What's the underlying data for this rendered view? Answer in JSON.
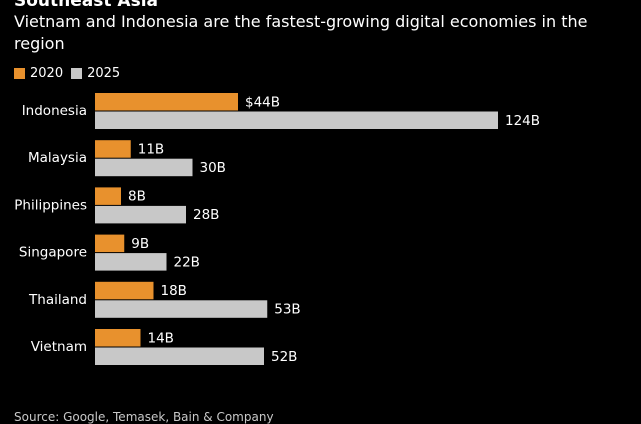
{
  "title": "Southeast Asia",
  "subtitle": "Vietnam and Indonesia are the fastest-growing digital economies in the region",
  "source": "Source: Google, Temasek, Bain & Company",
  "colors": {
    "series_2020": "#e8912d",
    "series_2025": "#c8c8c8",
    "background": "#000000",
    "text": "#ffffff"
  },
  "chart_data": {
    "type": "bar",
    "orientation": "horizontal",
    "title": "Southeast Asia",
    "subtitle": "Vietnam and Indonesia are the fastest-growing digital economies in the region",
    "categories": [
      "Indonesia",
      "Malaysia",
      "Philippines",
      "Singapore",
      "Thailand",
      "Vietnam"
    ],
    "series": [
      {
        "name": "2020",
        "values": [
          44,
          11,
          8,
          9,
          18,
          14
        ],
        "labels": [
          "$44B",
          "11B",
          "8B",
          "9B",
          "18B",
          "14B"
        ]
      },
      {
        "name": "2025",
        "values": [
          124,
          30,
          28,
          22,
          53,
          52
        ],
        "labels": [
          "124B",
          "30B",
          "28B",
          "22B",
          "53B",
          "52B"
        ]
      }
    ],
    "xlabel": "",
    "ylabel": "",
    "xlim": [
      0,
      124
    ],
    "grid": false,
    "legend": "top-left"
  }
}
